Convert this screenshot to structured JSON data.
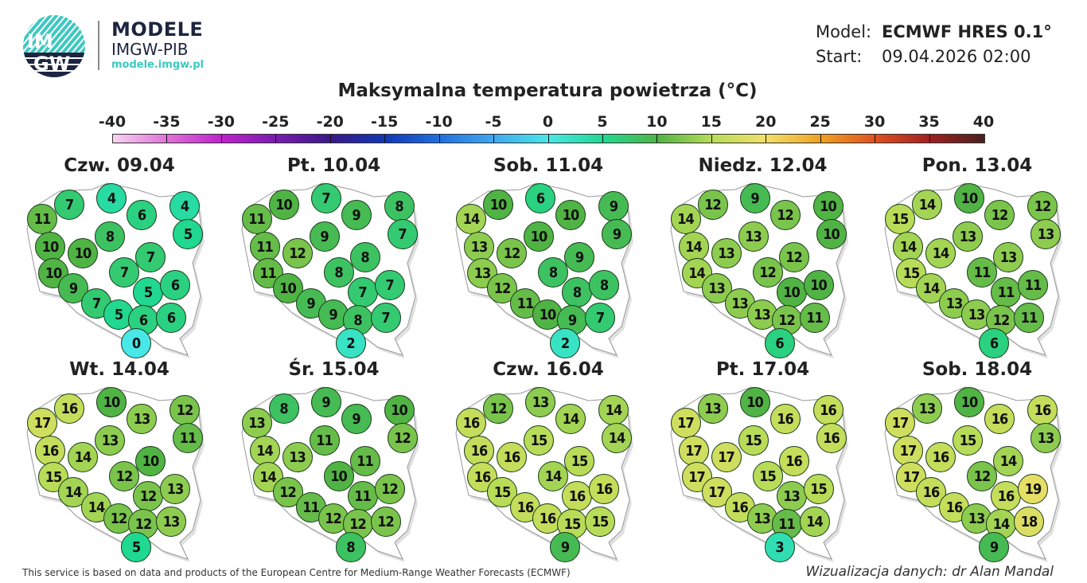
{
  "header": {
    "logo_text": "IMGW",
    "brand_title": "MODELE",
    "brand_subtitle": "IMGW-PIB",
    "brand_url": "modele.imgw.pl",
    "model_label": "Model:",
    "model_value": "ECMWF HRES 0.1°",
    "start_label": "Start:",
    "start_value": "09.04.2026 02:00"
  },
  "title": "Maksymalna temperatura powietrza (°C)",
  "colorbar": {
    "ticks": [
      "-40",
      "-35",
      "-30",
      "-25",
      "-20",
      "-15",
      "-10",
      "-5",
      "0",
      "5",
      "10",
      "15",
      "20",
      "25",
      "30",
      "35",
      "40"
    ],
    "stops": [
      "#f8d4f2",
      "#e070d8",
      "#c020d0",
      "#7a1cb0",
      "#3a1888",
      "#1038b8",
      "#2070e0",
      "#40a8f0",
      "#48e8e8",
      "#20d890",
      "#50b444",
      "#b8dc58",
      "#f2e068",
      "#f0a020",
      "#e05020",
      "#a02020",
      "#4a2020"
    ]
  },
  "maps": [
    {
      "day": "Czw. 09.04",
      "values": [
        7,
        4,
        11,
        6,
        4,
        8,
        5,
        10,
        10,
        7,
        10,
        7,
        9,
        5,
        6,
        7,
        5,
        6,
        6,
        0
      ]
    },
    {
      "day": "Pt. 10.04",
      "values": [
        10,
        7,
        11,
        9,
        8,
        9,
        7,
        11,
        12,
        8,
        11,
        8,
        10,
        7,
        7,
        9,
        9,
        8,
        7,
        2
      ]
    },
    {
      "day": "Sob. 11.04",
      "values": [
        10,
        6,
        14,
        10,
        9,
        10,
        9,
        13,
        12,
        9,
        13,
        8,
        12,
        8,
        8,
        11,
        10,
        9,
        7,
        2
      ]
    },
    {
      "day": "Niedz. 12.04",
      "values": [
        12,
        9,
        14,
        12,
        10,
        13,
        10,
        14,
        13,
        12,
        14,
        12,
        13,
        10,
        10,
        13,
        13,
        12,
        11,
        6
      ]
    },
    {
      "day": "Pon. 13.04",
      "values": [
        14,
        10,
        15,
        12,
        12,
        13,
        13,
        14,
        14,
        13,
        15,
        11,
        14,
        11,
        11,
        13,
        13,
        12,
        11,
        6
      ]
    },
    {
      "day": "Wt. 14.04",
      "values": [
        16,
        10,
        17,
        13,
        12,
        13,
        11,
        16,
        14,
        10,
        15,
        12,
        14,
        12,
        13,
        14,
        12,
        12,
        13,
        5
      ]
    },
    {
      "day": "Śr. 15.04",
      "values": [
        8,
        9,
        13,
        9,
        10,
        11,
        12,
        14,
        13,
        11,
        14,
        10,
        12,
        11,
        12,
        11,
        12,
        12,
        12,
        8
      ]
    },
    {
      "day": "Czw. 16.04",
      "values": [
        12,
        13,
        16,
        14,
        14,
        15,
        14,
        16,
        16,
        15,
        16,
        14,
        15,
        16,
        16,
        16,
        16,
        15,
        15,
        9
      ]
    },
    {
      "day": "Pt. 17.04",
      "values": [
        13,
        10,
        17,
        16,
        16,
        15,
        16,
        17,
        17,
        16,
        17,
        15,
        17,
        13,
        15,
        16,
        13,
        11,
        14,
        3
      ]
    },
    {
      "day": "Sob. 18.04",
      "values": [
        13,
        10,
        17,
        16,
        16,
        15,
        13,
        17,
        16,
        14,
        17,
        12,
        16,
        16,
        19,
        16,
        13,
        14,
        18,
        9
      ]
    }
  ],
  "footer": {
    "credit": "This service is based on data and products of the European Centre for Medium-Range Weather Forecasts (ECMWF)",
    "author": "Wizualizacja danych: dr Alan Mandal"
  }
}
